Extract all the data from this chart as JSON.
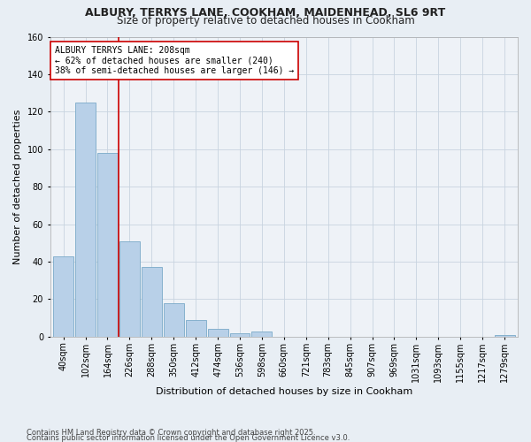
{
  "title1": "ALBURY, TERRYS LANE, COOKHAM, MAIDENHEAD, SL6 9RT",
  "title2": "Size of property relative to detached houses in Cookham",
  "xlabel": "Distribution of detached houses by size in Cookham",
  "ylabel": "Number of detached properties",
  "annotation_line1": "ALBURY TERRYS LANE: 208sqm",
  "annotation_line2": "← 62% of detached houses are smaller (240)",
  "annotation_line3": "38% of semi-detached houses are larger (146) →",
  "footer1": "Contains HM Land Registry data © Crown copyright and database right 2025.",
  "footer2": "Contains public sector information licensed under the Open Government Licence v3.0.",
  "categories": [
    "40sqm",
    "102sqm",
    "164sqm",
    "226sqm",
    "288sqm",
    "350sqm",
    "412sqm",
    "474sqm",
    "536sqm",
    "598sqm",
    "660sqm",
    "721sqm",
    "783sqm",
    "845sqm",
    "907sqm",
    "969sqm",
    "1031sqm",
    "1093sqm",
    "1155sqm",
    "1217sqm",
    "1279sqm"
  ],
  "values": [
    43,
    125,
    98,
    51,
    37,
    18,
    9,
    4,
    2,
    3,
    0,
    0,
    0,
    0,
    0,
    0,
    0,
    0,
    0,
    0,
    1
  ],
  "bar_color": "#b8d0e8",
  "bar_edgecolor": "#7aaac8",
  "vline_x": 2.5,
  "vline_color": "#cc0000",
  "annotation_box_color": "#ffffff",
  "annotation_box_edgecolor": "#cc0000",
  "ylim": [
    0,
    160
  ],
  "yticks": [
    0,
    20,
    40,
    60,
    80,
    100,
    120,
    140,
    160
  ],
  "background_color": "#e8eef4",
  "plot_background": "#eef2f7",
  "grid_color": "#c8d4e0",
  "title_fontsize": 9,
  "subtitle_fontsize": 8.5,
  "xlabel_fontsize": 8,
  "ylabel_fontsize": 8,
  "tick_fontsize": 7,
  "footer_fontsize": 6
}
